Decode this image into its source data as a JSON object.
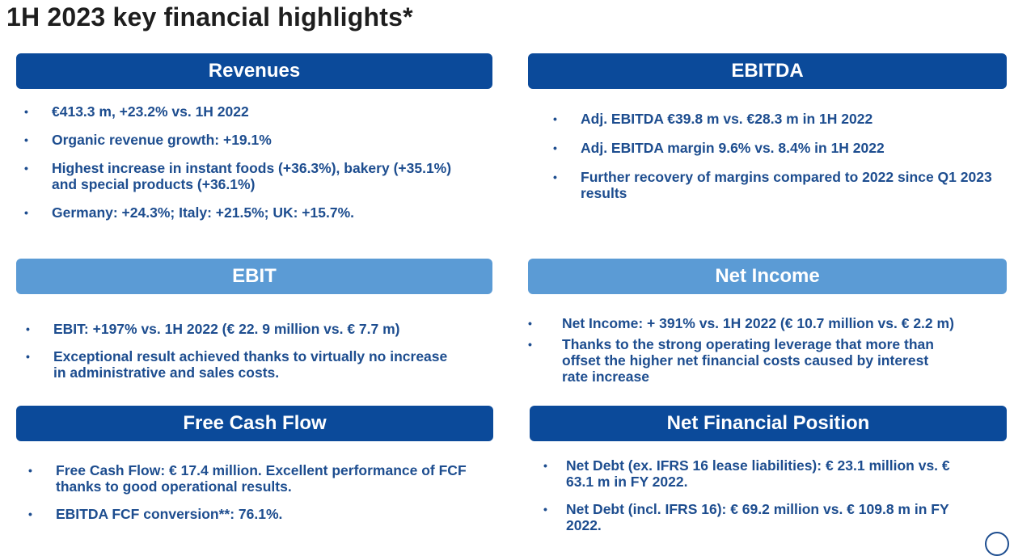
{
  "page": {
    "title": "1H 2023 key financial highlights*"
  },
  "sections": {
    "revenues": {
      "heading": "Revenues",
      "bullets": [
        "€413.3 m, +23.2% vs. 1H 2022",
        "Organic revenue growth: +19.1%",
        "Highest increase in instant foods (+36.3%), bakery (+35.1%) and special products (+36.1%)",
        "Germany: +24.3%; Italy: +21.5%; UK: +15.7%."
      ]
    },
    "ebitda": {
      "heading": "EBITDA",
      "bullets": [
        "Adj. EBITDA €39.8 m vs. €28.3 m in 1H 2022",
        "Adj. EBITDA margin 9.6% vs. 8.4% in 1H 2022",
        "Further recovery of margins compared to 2022 since Q1 2023 results"
      ]
    },
    "ebit": {
      "heading": "EBIT",
      "bullets": [
        "EBIT: +197% vs. 1H 2022 (€ 22. 9 million vs. € 7.7 m)",
        "Exceptional result achieved thanks to virtually no increase in administrative and sales costs."
      ]
    },
    "net_income": {
      "heading": "Net Income",
      "bullets": [
        "Net Income: + 391% vs. 1H 2022 (€ 10.7 million vs. € 2.2 m)",
        "Thanks to the strong operating leverage that more than offset the higher net financial costs caused by interest rate increase"
      ]
    },
    "free_cash_flow": {
      "heading": "Free Cash Flow",
      "bullets": [
        "Free Cash Flow: € 17.4 million. Excellent performance of FCF thanks to good operational results.",
        "EBITDA FCF conversion**: 76.1%."
      ]
    },
    "net_financial_position": {
      "heading": "Net Financial Position",
      "bullets": [
        "Net Debt (ex. IFRS 16 lease liabilities): € 23.1 million vs. € 63.1 m in FY 2022.",
        "Net Debt (incl. IFRS 16): € 69.2  million vs. € 109.8 m in FY 2022."
      ]
    }
  },
  "bullet_glyph": "•",
  "colors": {
    "header_dark": "#0b4a9a",
    "header_light": "#5b9bd5",
    "bullet_text": "#1d4d8f",
    "title_text": "#1e1e1e"
  }
}
